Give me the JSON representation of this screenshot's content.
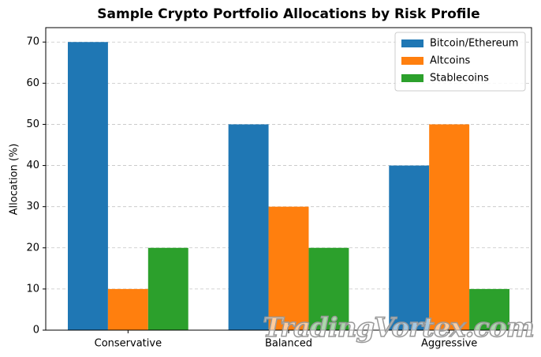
{
  "chart_data": {
    "type": "bar",
    "title": "Sample Crypto Portfolio Allocations by Risk Profile",
    "ylabel": "Allocation (%)",
    "categories": [
      "Conservative",
      "Balanced",
      "Aggressive"
    ],
    "series": [
      {
        "name": "Bitcoin/Ethereum",
        "color": "#1f77b4",
        "values": [
          70,
          50,
          40
        ]
      },
      {
        "name": "Altcoins",
        "color": "#ff7f0e",
        "values": [
          10,
          30,
          50
        ]
      },
      {
        "name": "Stablecoins",
        "color": "#2ca02c",
        "values": [
          20,
          20,
          10
        ]
      }
    ],
    "ylim": [
      0,
      73.5
    ],
    "yticks": [
      0,
      10,
      20,
      30,
      40,
      50,
      60,
      70
    ],
    "grid": true,
    "legend": "upper right",
    "watermark": "TradingVortex.com"
  }
}
